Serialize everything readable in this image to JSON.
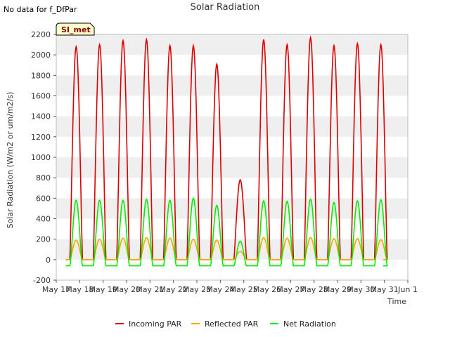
{
  "header": {
    "no_data": "No data for f_DfPar",
    "title": "Solar Radiation",
    "site_label": "SI_met"
  },
  "chart_data": {
    "type": "line",
    "title": "Solar Radiation",
    "xlabel": "Time",
    "ylabel": "Solar Radiation (W/m2 or um/m2/s)",
    "ylim": [
      -200,
      2200
    ],
    "yticks": [
      -200,
      0,
      200,
      400,
      600,
      800,
      1000,
      1200,
      1400,
      1600,
      1800,
      2000,
      2200
    ],
    "xlim": [
      0,
      15
    ],
    "xticks": [
      0,
      1,
      2,
      3,
      4,
      5,
      6,
      7,
      8,
      9,
      10,
      11,
      12,
      13,
      14,
      15
    ],
    "xtick_labels": [
      "May 17",
      "May 18",
      "May 19",
      "May 20",
      "May 21",
      "May 22",
      "May 23",
      "May 24",
      "May 25",
      "May 26",
      "May 27",
      "May 28",
      "May 29",
      "May 30",
      "May 31",
      "Jun 1"
    ],
    "grid": "horizontal bands",
    "legend_position": "bottom",
    "days": [
      {
        "x": 0.85,
        "incoming": 2080,
        "reflected": 190,
        "net": 580
      },
      {
        "x": 1.85,
        "incoming": 2100,
        "reflected": 200,
        "net": 580
      },
      {
        "x": 2.85,
        "incoming": 2140,
        "reflected": 210,
        "net": 580
      },
      {
        "x": 3.85,
        "incoming": 2150,
        "reflected": 215,
        "net": 590
      },
      {
        "x": 4.85,
        "incoming": 2090,
        "reflected": 210,
        "net": 580
      },
      {
        "x": 5.85,
        "incoming": 2090,
        "reflected": 200,
        "net": 600
      },
      {
        "x": 6.85,
        "incoming": 1910,
        "reflected": 190,
        "net": 530
      },
      {
        "x": 7.85,
        "incoming": 780,
        "reflected": 80,
        "net": 180
      },
      {
        "x": 8.85,
        "incoming": 2150,
        "reflected": 215,
        "net": 575
      },
      {
        "x": 9.85,
        "incoming": 2100,
        "reflected": 210,
        "net": 570
      },
      {
        "x": 10.85,
        "incoming": 2170,
        "reflected": 215,
        "net": 590
      },
      {
        "x": 11.85,
        "incoming": 2090,
        "reflected": 205,
        "net": 560
      },
      {
        "x": 12.85,
        "incoming": 2110,
        "reflected": 205,
        "net": 575
      },
      {
        "x": 13.85,
        "incoming": 2100,
        "reflected": 195,
        "net": 585
      }
    ],
    "night_values": {
      "incoming": 0,
      "reflected": 0,
      "net": -60
    },
    "series": [
      {
        "name": "Incoming PAR",
        "key": "incoming",
        "color": "#dd0000"
      },
      {
        "name": "Reflected PAR",
        "key": "reflected",
        "color": "#ffa500"
      },
      {
        "name": "Net Radiation",
        "key": "net",
        "color": "#00ee00"
      }
    ]
  }
}
